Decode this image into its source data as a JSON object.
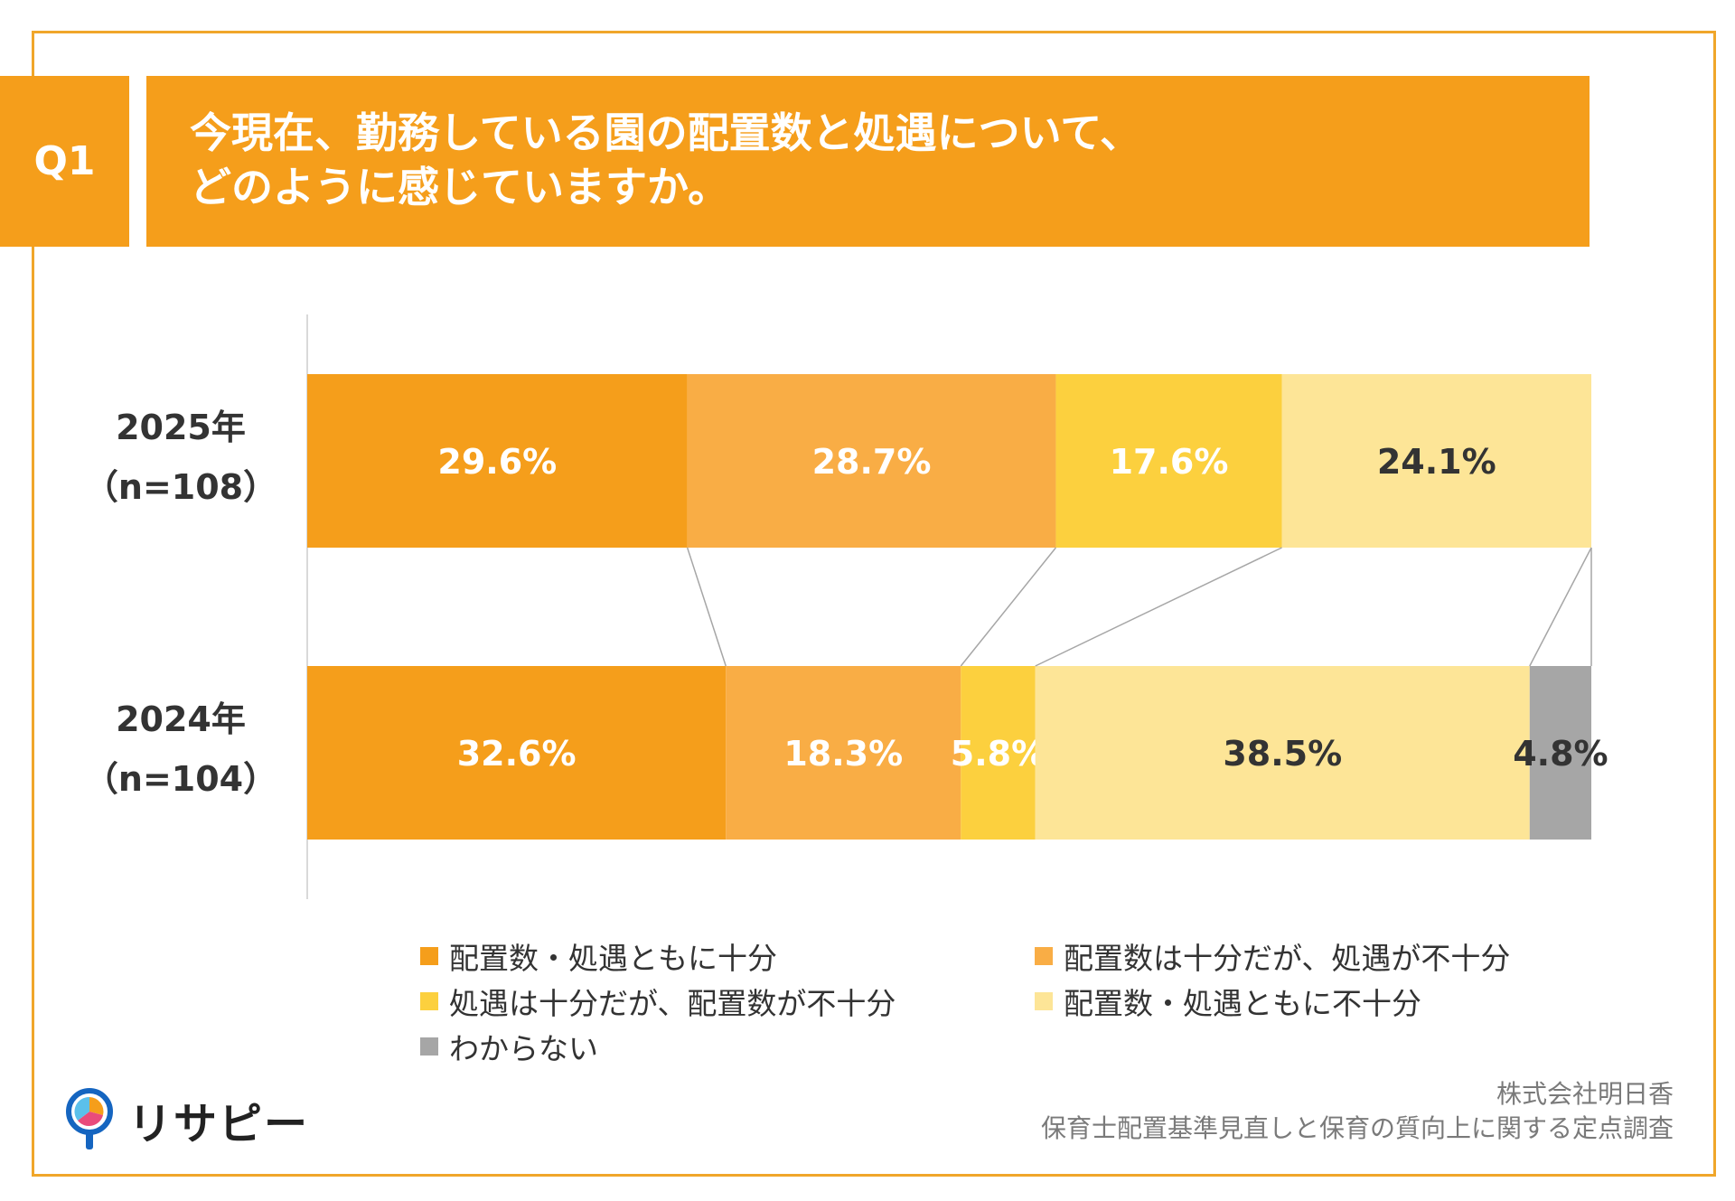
{
  "header": {
    "q_label": "Q1",
    "title_line1": "今現在、勤務している園の配置数と処遇について、",
    "title_line2": "どのように感じていますか。"
  },
  "chart_data": {
    "type": "bar",
    "orientation": "horizontal-stacked-100",
    "categories": [
      {
        "year": "2025年",
        "n": "（n=108）"
      },
      {
        "year": "2024年",
        "n": "（n=104）"
      }
    ],
    "series": [
      {
        "name": "配置数・処遇ともに十分",
        "color": "#F59E1B",
        "values": [
          29.6,
          32.6
        ],
        "labels": [
          "29.6%",
          "32.6%"
        ],
        "label_color": "#ffffff"
      },
      {
        "name": "配置数は十分だが、処遇が不十分",
        "color": "#F9AD45",
        "values": [
          28.7,
          18.3
        ],
        "labels": [
          "28.7%",
          "18.3%"
        ],
        "label_color": "#ffffff"
      },
      {
        "name": "処遇は十分だが、配置数が不十分",
        "color": "#FCD03E",
        "values": [
          17.6,
          5.8
        ],
        "labels": [
          "17.6%",
          "5.8%"
        ],
        "label_color": "#ffffff"
      },
      {
        "name": "配置数・処遇ともに不十分",
        "color": "#FDE597",
        "values": [
          24.1,
          38.5
        ],
        "labels": [
          "24.1%",
          "38.5%"
        ],
        "label_color": "#333333"
      },
      {
        "name": "わからない",
        "color": "#A6A6A6",
        "values": [
          0,
          4.8
        ],
        "labels": [
          "",
          "4.8%"
        ],
        "label_color": "#333333"
      }
    ],
    "xlim": [
      0,
      100
    ],
    "legend_position": "bottom"
  },
  "footer": {
    "logo_text": "リサピー",
    "source_line1": "株式会社明日香",
    "source_line2": "保育士配置基準見直しと保育の質向上に関する定点調査"
  }
}
